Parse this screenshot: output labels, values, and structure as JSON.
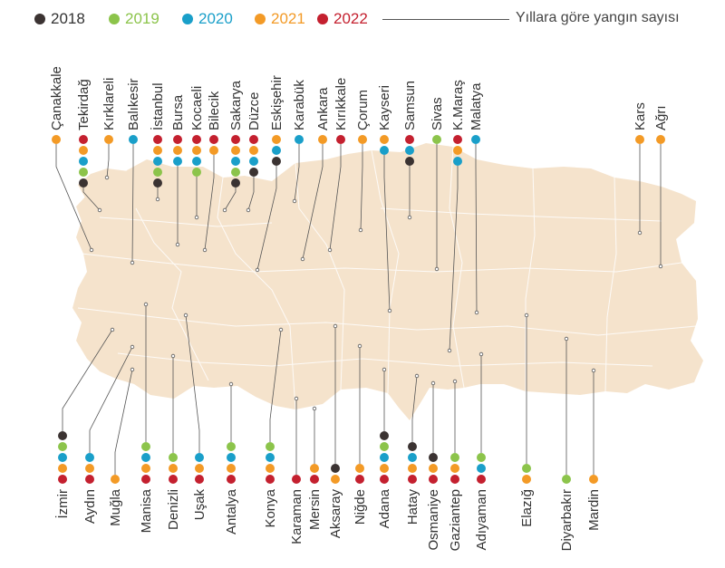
{
  "legend": {
    "years": [
      {
        "label": "2018",
        "color": "#3b3332"
      },
      {
        "label": "2019",
        "color": "#8cc44b"
      },
      {
        "label": "2020",
        "color": "#1a9fc9"
      },
      {
        "label": "2021",
        "color": "#f39a26"
      },
      {
        "label": "2022",
        "color": "#c4202f"
      }
    ],
    "description": "Yıllara göre yangın sayısı"
  },
  "map": {
    "fill": "#f5e3cc",
    "stroke": "#ffffff"
  },
  "provinces_top": [
    {
      "name": "Çanakkale",
      "dots": [
        "#f39a26"
      ]
    },
    {
      "name": "Tekirdağ",
      "dots": [
        "#c4202f",
        "#f39a26",
        "#1a9fc9",
        "#8cc44b",
        "#3b3332"
      ]
    },
    {
      "name": "Kırklareli",
      "dots": [
        "#f39a26"
      ]
    },
    {
      "name": "Balıkesir",
      "dots": [
        "#1a9fc9"
      ]
    },
    {
      "name": "İstanbul",
      "dots": [
        "#c4202f",
        "#f39a26",
        "#1a9fc9",
        "#8cc44b",
        "#3b3332"
      ]
    },
    {
      "name": "Bursa",
      "dots": [
        "#c4202f",
        "#f39a26",
        "#1a9fc9"
      ]
    },
    {
      "name": "Kocaeli",
      "dots": [
        "#c4202f",
        "#f39a26",
        "#1a9fc9",
        "#8cc44b"
      ]
    },
    {
      "name": "Bilecik",
      "dots": [
        "#c4202f",
        "#f39a26"
      ]
    },
    {
      "name": "Sakarya",
      "dots": [
        "#c4202f",
        "#f39a26",
        "#1a9fc9",
        "#8cc44b",
        "#3b3332"
      ]
    },
    {
      "name": "Düzce",
      "dots": [
        "#c4202f",
        "#f39a26",
        "#1a9fc9",
        "#3b3332"
      ]
    },
    {
      "name": "Eskişehir",
      "dots": [
        "#f39a26",
        "#1a9fc9",
        "#3b3332"
      ]
    },
    {
      "name": "Karabük",
      "dots": [
        "#1a9fc9"
      ]
    },
    {
      "name": "Ankara",
      "dots": [
        "#f39a26"
      ]
    },
    {
      "name": "Kırıkkale",
      "dots": [
        "#c4202f"
      ]
    },
    {
      "name": "Çorum",
      "dots": [
        "#f39a26"
      ]
    },
    {
      "name": "Kayseri",
      "dots": [
        "#f39a26",
        "#1a9fc9"
      ]
    },
    {
      "name": "Samsun",
      "dots": [
        "#c4202f",
        "#1a9fc9",
        "#3b3332"
      ]
    },
    {
      "name": "Sivas",
      "dots": [
        "#8cc44b"
      ]
    },
    {
      "name": "K.Maraş",
      "dots": [
        "#c4202f",
        "#f39a26",
        "#1a9fc9"
      ]
    },
    {
      "name": "Malatya",
      "dots": [
        "#1a9fc9"
      ]
    },
    {
      "name": "Kars",
      "dots": [
        "#f39a26"
      ]
    },
    {
      "name": "Ağrı",
      "dots": [
        "#f39a26"
      ]
    }
  ],
  "provinces_bottom": [
    {
      "name": "İzmir",
      "dots": [
        "#3b3332",
        "#8cc44b",
        "#1a9fc9",
        "#f39a26",
        "#c4202f"
      ]
    },
    {
      "name": "Aydın",
      "dots": [
        "#1a9fc9",
        "#f39a26",
        "#c4202f"
      ]
    },
    {
      "name": "Muğla",
      "dots": [
        "#f39a26"
      ]
    },
    {
      "name": "Manisa",
      "dots": [
        "#8cc44b",
        "#1a9fc9",
        "#f39a26",
        "#c4202f"
      ]
    },
    {
      "name": "Denizli",
      "dots": [
        "#8cc44b",
        "#f39a26",
        "#c4202f"
      ]
    },
    {
      "name": "Uşak",
      "dots": [
        "#1a9fc9",
        "#f39a26",
        "#c4202f"
      ]
    },
    {
      "name": "Antalya",
      "dots": [
        "#8cc44b",
        "#1a9fc9",
        "#f39a26",
        "#c4202f"
      ]
    },
    {
      "name": "Konya",
      "dots": [
        "#8cc44b",
        "#1a9fc9",
        "#f39a26",
        "#c4202f"
      ]
    },
    {
      "name": "Karaman",
      "dots": [
        "#c4202f"
      ]
    },
    {
      "name": "Mersin",
      "dots": [
        "#f39a26",
        "#c4202f"
      ]
    },
    {
      "name": "Aksaray",
      "dots": [
        "#3b3332",
        "#f39a26"
      ]
    },
    {
      "name": "Niğde",
      "dots": [
        "#f39a26",
        "#c4202f"
      ]
    },
    {
      "name": "Adana",
      "dots": [
        "#3b3332",
        "#8cc44b",
        "#1a9fc9",
        "#f39a26",
        "#c4202f"
      ]
    },
    {
      "name": "Hatay",
      "dots": [
        "#3b3332",
        "#1a9fc9",
        "#f39a26",
        "#c4202f"
      ]
    },
    {
      "name": "Osmaniye",
      "dots": [
        "#3b3332",
        "#f39a26",
        "#c4202f"
      ]
    },
    {
      "name": "Gaziantep",
      "dots": [
        "#8cc44b",
        "#f39a26",
        "#c4202f"
      ]
    },
    {
      "name": "Adıyaman",
      "dots": [
        "#8cc44b",
        "#1a9fc9",
        "#c4202f"
      ]
    },
    {
      "name": "Elazığ",
      "dots": [
        "#8cc44b",
        "#f39a26"
      ]
    },
    {
      "name": "Diyarbakır",
      "dots": [
        "#8cc44b"
      ]
    },
    {
      "name": "Mardin",
      "dots": [
        "#f39a26"
      ]
    }
  ]
}
